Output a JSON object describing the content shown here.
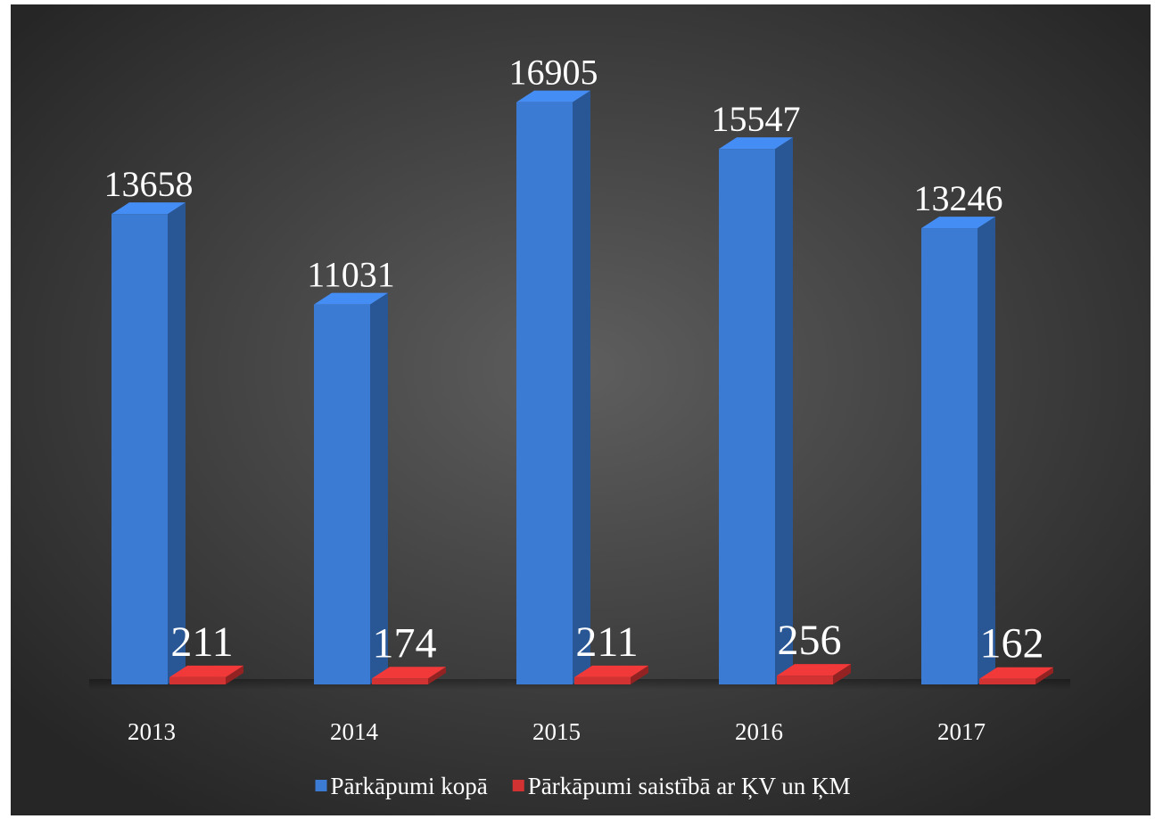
{
  "chart_data": {
    "type": "bar3d",
    "categories": [
      "2013",
      "2014",
      "2015",
      "2016",
      "2017"
    ],
    "series": [
      {
        "name": "Pārkāpumi kopā",
        "color": "#3b7bd4",
        "values": [
          13658,
          11031,
          16905,
          15547,
          13246
        ]
      },
      {
        "name": "Pārkāpumi saistībā ar ĶV un ĶM",
        "color": "#d23232",
        "values": [
          211,
          174,
          211,
          256,
          162
        ]
      }
    ],
    "ylim": [
      0,
      17000
    ],
    "legend": "bottom"
  }
}
